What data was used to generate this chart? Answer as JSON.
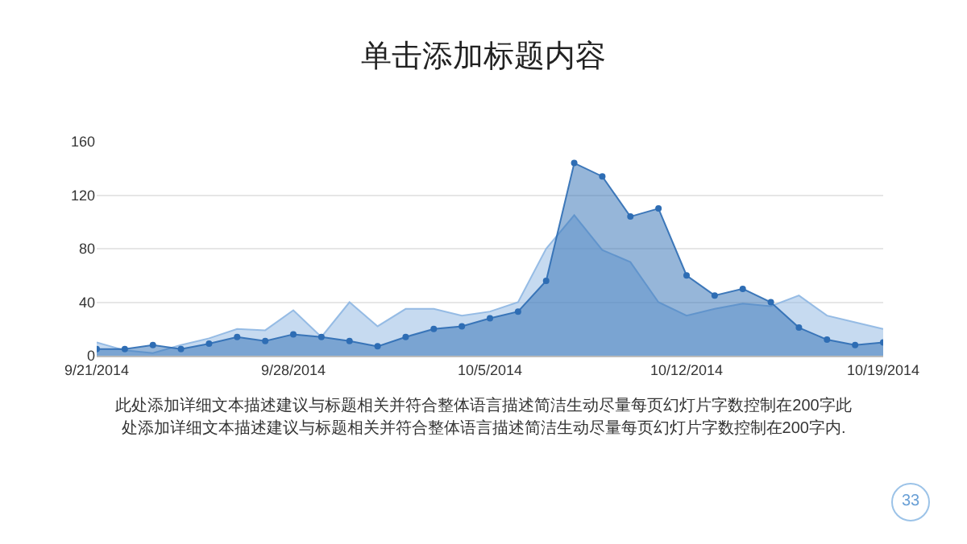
{
  "chart_data": {
    "type": "area",
    "title": "单击添加标题内容",
    "x": [
      "2014-09-21",
      "2014-09-22",
      "2014-09-23",
      "2014-09-24",
      "2014-09-25",
      "2014-09-26",
      "2014-09-27",
      "2014-09-28",
      "2014-09-29",
      "2014-09-30",
      "2014-10-01",
      "2014-10-02",
      "2014-10-03",
      "2014-10-04",
      "2014-10-05",
      "2014-10-06",
      "2014-10-07",
      "2014-10-08",
      "2014-10-09",
      "2014-10-10",
      "2014-10-11",
      "2014-10-12",
      "2014-10-13",
      "2014-10-14",
      "2014-10-15",
      "2014-10-16",
      "2014-10-17",
      "2014-10-18",
      "2014-10-19"
    ],
    "series": [
      {
        "color": "#8db6e2",
        "marker": "none",
        "values": [
          10,
          4,
          2,
          8,
          13,
          20,
          19,
          34,
          14,
          40,
          22,
          35,
          35,
          30,
          33,
          40,
          80,
          105,
          79,
          70,
          40,
          30,
          35,
          39,
          37,
          45,
          30,
          25,
          20
        ]
      },
      {
        "color": "#2e6db4",
        "marker": "circle",
        "values": [
          5,
          5,
          8,
          5,
          9,
          14,
          11,
          16,
          14,
          11,
          7,
          14,
          20,
          22,
          28,
          33,
          56,
          144,
          134,
          104,
          110,
          60,
          45,
          50,
          40,
          21,
          12,
          8,
          10
        ]
      }
    ],
    "xlim": [
      "2014-09-21",
      "2014-10-19"
    ],
    "xticks": [
      {
        "value": "2014-09-21",
        "label": "9/21/2014"
      },
      {
        "value": "2014-09-28",
        "label": "9/28/2014"
      },
      {
        "value": "2014-10-05",
        "label": "10/5/2014"
      },
      {
        "value": "2014-10-12",
        "label": "10/12/2014"
      },
      {
        "value": "2014-10-19",
        "label": "10/19/2014"
      }
    ],
    "ylim": [
      0,
      160
    ],
    "yticks": [
      0,
      40,
      80,
      120,
      160
    ],
    "grid": "y",
    "annotations": [
      "此处添加详细文本描述建议与标题相关并符合整体语言描述简洁生动尽量每页幻灯片字数控制在200字此处添加详细文本描述建议与标题相关并符合整体语言描述简洁生动尽量每页幻灯片字数控制在200字内.",
      "33"
    ]
  }
}
